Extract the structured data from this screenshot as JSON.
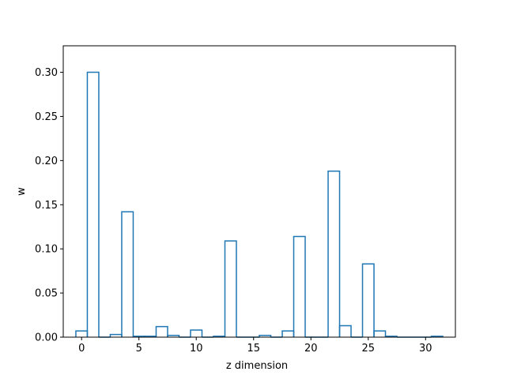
{
  "chart_data": {
    "type": "bar",
    "style": "step-histogram",
    "title": "",
    "xlabel": "z dimension",
    "ylabel": "w",
    "xlim": [
      -1.6,
      32.6
    ],
    "ylim": [
      0,
      0.33
    ],
    "x_ticks": [
      0,
      5,
      10,
      15,
      20,
      25,
      30
    ],
    "y_ticks": [
      0.0,
      0.05,
      0.1,
      0.15,
      0.2,
      0.25,
      0.3
    ],
    "y_tick_labels": [
      "0.00",
      "0.05",
      "0.10",
      "0.15",
      "0.20",
      "0.25",
      "0.30"
    ],
    "grid": false,
    "color": "#1f77b4",
    "x": [
      0,
      1,
      2,
      3,
      4,
      5,
      6,
      7,
      8,
      9,
      10,
      11,
      12,
      13,
      14,
      15,
      16,
      17,
      18,
      19,
      20,
      21,
      22,
      23,
      24,
      25,
      26,
      27,
      28,
      29,
      30,
      31
    ],
    "values": [
      0.007,
      0.3,
      0.0,
      0.003,
      0.142,
      0.001,
      0.001,
      0.012,
      0.002,
      0.0,
      0.008,
      0.0,
      0.001,
      0.109,
      0.0,
      0.0,
      0.002,
      0.0,
      0.007,
      0.114,
      0.0,
      0.0,
      0.188,
      0.013,
      0.0,
      0.083,
      0.007,
      0.001,
      0.0,
      0.0,
      0.0,
      0.001
    ]
  }
}
